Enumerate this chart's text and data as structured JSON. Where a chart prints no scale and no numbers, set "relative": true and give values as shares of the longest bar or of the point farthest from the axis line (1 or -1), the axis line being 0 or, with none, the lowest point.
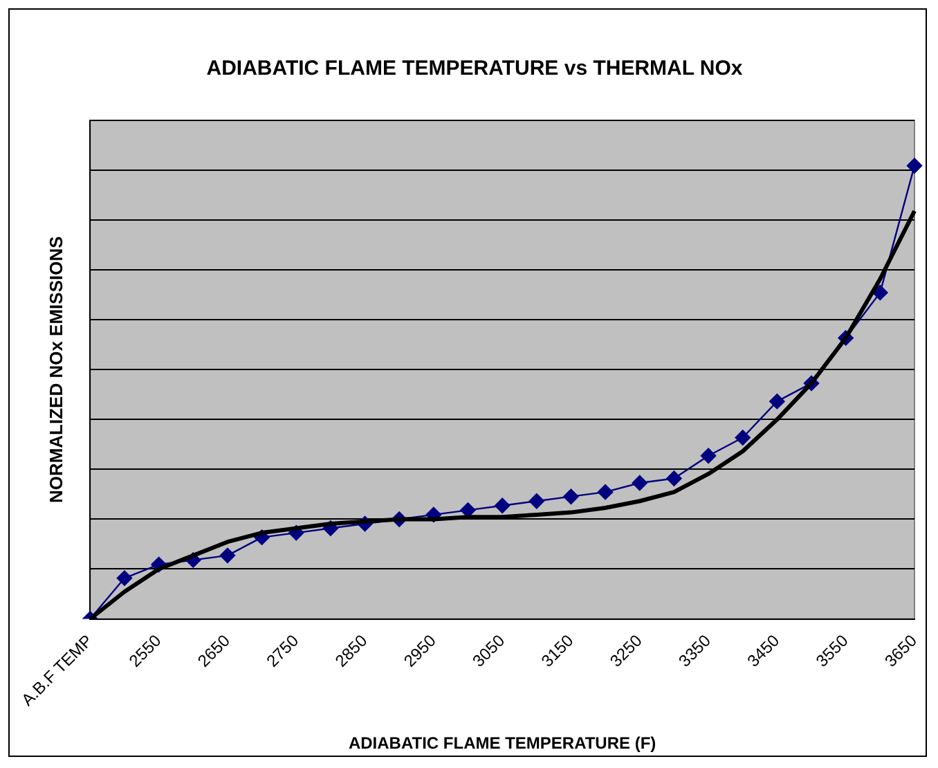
{
  "chart_data": {
    "type": "line",
    "title": "ADIABATIC FLAME TEMPERATURE vs THERMAL NOx",
    "xlabel": "ADIABATIC FLAME TEMPERATURE (F)",
    "ylabel": "NORMALIZED NOx EMISSIONS",
    "relative": true,
    "grid": "y",
    "legend": false,
    "categories": [
      "A.B.F TEMP",
      null,
      "2550",
      null,
      "2650",
      null,
      "2750",
      null,
      "2850",
      null,
      "2950",
      null,
      "3050",
      null,
      "3150",
      null,
      "3250",
      null,
      "3350",
      null,
      "3450",
      null,
      "3550",
      null,
      "3650"
    ],
    "series": [
      {
        "color": "#000080",
        "marker": "diamond",
        "line_style": "solid",
        "values": [
          0,
          0.09,
          0.12,
          0.13,
          0.14,
          0.18,
          0.19,
          0.2,
          0.21,
          0.22,
          0.23,
          0.24,
          0.25,
          0.26,
          0.27,
          0.28,
          0.3,
          0.31,
          0.36,
          0.4,
          0.48,
          0.52,
          0.62,
          0.72,
          1
        ]
      },
      {
        "color": "#000000",
        "marker": "none",
        "line_style": "solid",
        "values": [
          0,
          0.06,
          0.11,
          0.14,
          0.17,
          0.19,
          0.2,
          0.21,
          0.215,
          0.22,
          0.22,
          0.225,
          0.225,
          0.23,
          0.235,
          0.245,
          0.26,
          0.28,
          0.32,
          0.37,
          0.44,
          0.52,
          0.62,
          0.75,
          0.9
        ]
      }
    ]
  }
}
